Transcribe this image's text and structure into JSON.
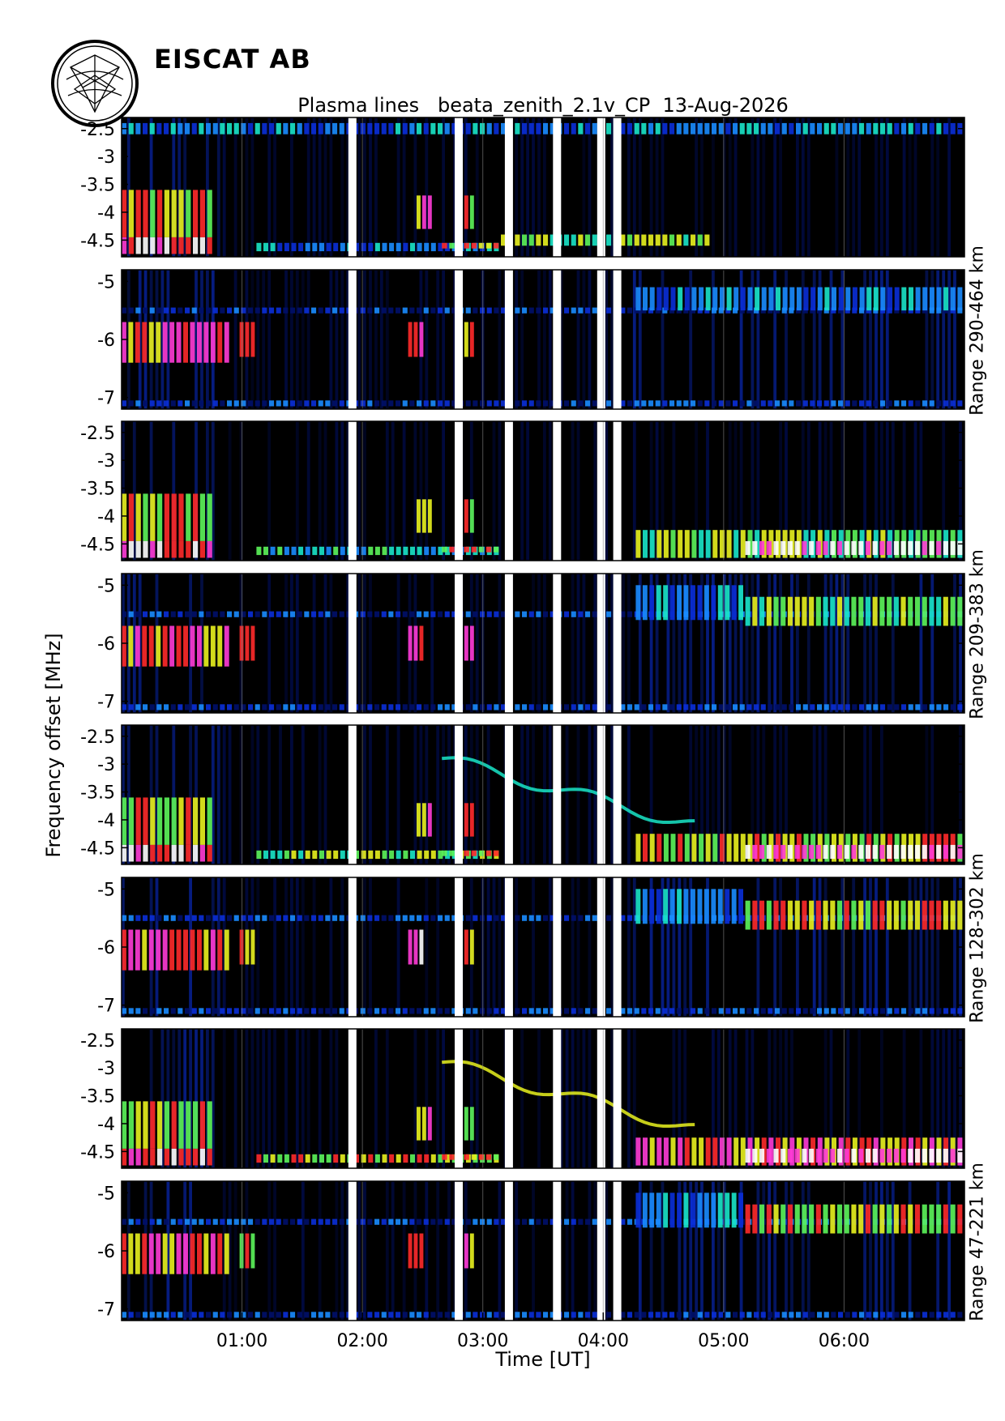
{
  "header": {
    "org": "EISCAT AB",
    "title": "Plasma lines   beata_zenith_2.1v_CP  13-Aug-2026"
  },
  "chart_data": {
    "type": "heatmap",
    "title": "Plasma lines   beata_zenith_2.1v_CP  13-Aug-2026",
    "xlabel": "Time [UT]",
    "ylabel": "Frequency offset [MHz]",
    "xlim": [
      "00:00",
      "07:00"
    ],
    "x_ticks": [
      "01:00",
      "02:00",
      "03:00",
      "04:00",
      "05:00",
      "06:00"
    ],
    "colormap": "black-blue-cyan-green-yellow-red-magenta-white",
    "data_gaps_ut": [
      "01:55",
      "02:48",
      "03:13",
      "03:37",
      "03:59",
      "04:07"
    ],
    "range_groups": [
      {
        "label": "Range 290-464 km",
        "panels": [
          {
            "band": "down",
            "ylim": [
              -4.8,
              -2.3
            ],
            "y_ticks": [
              "-2.5",
              "-3",
              "-3.5",
              "-4",
              "-4.5"
            ]
          },
          {
            "band": "up",
            "ylim": [
              -7.2,
              -4.8
            ],
            "y_ticks": [
              "-5",
              "-6",
              "-7"
            ]
          }
        ]
      },
      {
        "label": "Range 209-383 km",
        "panels": [
          {
            "band": "down",
            "ylim": [
              -4.8,
              -2.3
            ],
            "y_ticks": [
              "-2.5",
              "-3",
              "-3.5",
              "-4",
              "-4.5"
            ]
          },
          {
            "band": "up",
            "ylim": [
              -7.2,
              -4.8
            ],
            "y_ticks": [
              "-5",
              "-6",
              "-7"
            ]
          }
        ]
      },
      {
        "label": "Range 128-302 km",
        "panels": [
          {
            "band": "down",
            "ylim": [
              -4.8,
              -2.3
            ],
            "y_ticks": [
              "-2.5",
              "-3",
              "-3.5",
              "-4",
              "-4.5"
            ]
          },
          {
            "band": "up",
            "ylim": [
              -7.2,
              -4.8
            ],
            "y_ticks": [
              "-5",
              "-6",
              "-7"
            ]
          }
        ]
      },
      {
        "label": "Range 47-221 km",
        "panels": [
          {
            "band": "down",
            "ylim": [
              -4.8,
              -2.3
            ],
            "y_ticks": [
              "-2.5",
              "-3",
              "-3.5",
              "-4",
              "-4.5"
            ]
          },
          {
            "band": "up",
            "ylim": [
              -7.2,
              -4.8
            ],
            "y_ticks": [
              "-5",
              "-6",
              "-7"
            ]
          }
        ]
      }
    ]
  }
}
